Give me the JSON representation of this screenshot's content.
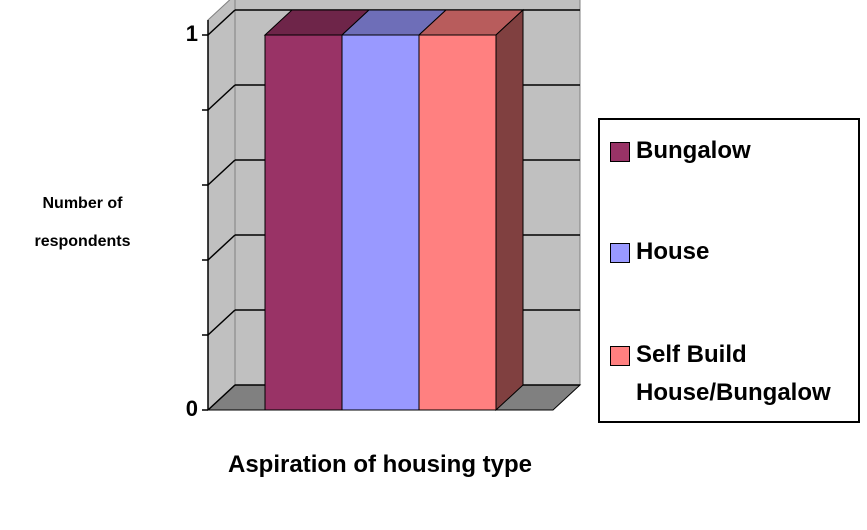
{
  "chart_data": {
    "type": "bar3d",
    "y_label": "Number of respondents",
    "x_label": "Aspiration of housing type",
    "categories": [
      null
    ],
    "series": [
      {
        "name": "Bungalow",
        "color": "#993366",
        "values": [
          1
        ]
      },
      {
        "name": "House",
        "color": "#9999ff",
        "values": [
          1
        ]
      },
      {
        "name": "Self Build House/Bungalow",
        "color": "#ff8080",
        "values": [
          1
        ]
      }
    ],
    "ylim": [
      0,
      1
    ],
    "yticks": [
      0,
      1
    ],
    "minor_yticks": [
      0.2,
      0.4,
      0.6,
      0.8
    ],
    "grid": true,
    "legend": "right"
  }
}
